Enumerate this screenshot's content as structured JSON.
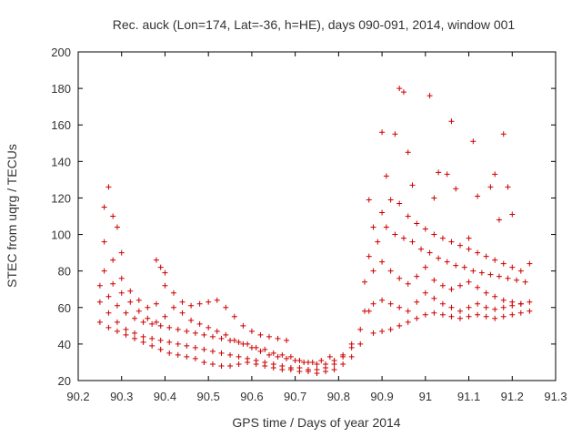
{
  "chart_data": {
    "type": "scatter",
    "title": "Rec. auck (Lon=174, Lat=-36, h=HE), days 090-091, 2014, window 001",
    "xlabel": "GPS time / Days of year 2014",
    "ylabel": "STEC from uqrg / TECUs",
    "xlim": [
      90.2,
      91.3
    ],
    "ylim": [
      20,
      200
    ],
    "xticks": [
      90.2,
      90.3,
      90.4,
      90.5,
      90.6,
      90.7,
      90.8,
      90.9,
      91,
      91.1,
      91.2,
      91.3
    ],
    "xtick_labels": [
      "90.2",
      "90.3",
      "90.4",
      "90.5",
      "90.6",
      "90.7",
      "90.8",
      "90.9",
      "91",
      "91.1",
      "91.2",
      "91.3"
    ],
    "yticks": [
      20,
      40,
      60,
      80,
      100,
      120,
      140,
      160,
      180,
      200
    ],
    "ytick_labels": [
      "20",
      "40",
      "60",
      "80",
      "100",
      "120",
      "140",
      "160",
      "180",
      "200"
    ],
    "grid": false,
    "marker": "+",
    "color": "#cc0000",
    "series": [
      {
        "name": "sat-1",
        "x": [
          90.25,
          90.27,
          90.29,
          90.31,
          90.33,
          90.35,
          90.37,
          90.39,
          90.41,
          90.43,
          90.45,
          90.47,
          90.49,
          90.51,
          90.53,
          90.55,
          90.57,
          90.59,
          90.61,
          90.63,
          90.65,
          90.67,
          90.69,
          90.71,
          90.73,
          90.75,
          90.77,
          90.79,
          90.81,
          90.83,
          90.85
        ],
        "y": [
          52,
          49,
          47,
          45,
          43,
          41,
          39,
          37,
          35,
          34,
          33,
          32,
          30,
          29,
          28,
          28,
          29,
          30,
          29,
          28,
          27,
          26,
          26,
          25,
          25,
          24,
          25,
          26,
          29,
          33,
          40
        ]
      },
      {
        "name": "sat-2",
        "x": [
          90.25,
          90.27,
          90.29,
          90.31,
          90.33,
          90.35,
          90.37,
          90.39,
          90.41,
          90.43,
          90.45,
          90.47,
          90.49,
          90.51,
          90.53,
          90.55,
          90.57,
          90.59,
          90.61,
          90.63,
          90.65,
          90.67,
          90.69,
          90.71,
          90.73,
          90.75,
          90.77,
          90.79,
          90.81,
          90.83
        ],
        "y": [
          63,
          57,
          52,
          48,
          46,
          44,
          43,
          42,
          41,
          40,
          39,
          38,
          37,
          36,
          35,
          34,
          33,
          32,
          31,
          30,
          29,
          28,
          27,
          27,
          26,
          26,
          27,
          29,
          33,
          38
        ]
      },
      {
        "name": "sat-3",
        "x": [
          90.25,
          90.27,
          90.29,
          90.31,
          90.33,
          90.35,
          90.37,
          90.39,
          90.41,
          90.43,
          90.45,
          90.47,
          90.49,
          90.51,
          90.53,
          90.55,
          90.57,
          90.59,
          90.61,
          90.63,
          90.65,
          90.67,
          90.69,
          90.71,
          90.73,
          90.75,
          90.77,
          90.79,
          90.81,
          90.83,
          90.85,
          90.87
        ],
        "y": [
          72,
          66,
          61,
          57,
          54,
          52,
          51,
          50,
          49,
          48,
          47,
          46,
          45,
          44,
          43,
          42,
          41,
          40,
          38,
          37,
          35,
          34,
          33,
          31,
          30,
          29,
          29,
          31,
          34,
          40,
          48,
          58
        ]
      },
      {
        "name": "sat-4",
        "x": [
          90.26,
          90.28,
          90.3,
          90.32,
          90.34,
          90.36,
          90.38,
          90.4,
          90.42,
          90.44,
          90.46,
          90.48,
          90.5,
          90.52,
          90.54,
          90.56,
          90.58,
          90.6,
          90.62,
          90.64,
          90.66,
          90.68
        ],
        "y": [
          96,
          86,
          76,
          69,
          64,
          60,
          62,
          72,
          68,
          63,
          61,
          62,
          63,
          64,
          60,
          55,
          50,
          47,
          45,
          44,
          43,
          42
        ]
      },
      {
        "name": "sat-5",
        "x": [
          90.26,
          90.28,
          90.3,
          90.32,
          90.34,
          90.36,
          90.38,
          90.4,
          90.42,
          90.44,
          90.46,
          90.48,
          90.5,
          90.52,
          90.54,
          90.56,
          90.58,
          90.6,
          90.62,
          90.64,
          90.66,
          90.68,
          90.7,
          90.72,
          90.74,
          90.76,
          90.78
        ],
        "y": [
          80,
          73,
          68,
          63,
          58,
          54,
          52,
          55,
          60,
          57,
          53,
          51,
          49,
          47,
          45,
          42,
          40,
          38,
          36,
          34,
          33,
          32,
          31,
          30,
          30,
          31,
          33
        ]
      },
      {
        "name": "sat-6",
        "x": [
          90.88,
          90.9,
          90.92,
          90.94,
          90.96,
          90.98,
          91.0,
          91.02,
          91.04,
          91.06,
          91.08,
          91.1,
          91.12,
          91.14,
          91.16,
          91.18,
          91.2,
          91.22,
          91.24
        ],
        "y": [
          46,
          47,
          48,
          50,
          52,
          54,
          56,
          57,
          56,
          55,
          54,
          55,
          56,
          55,
          54,
          55,
          56,
          57,
          58
        ]
      },
      {
        "name": "sat-7",
        "x": [
          90.86,
          90.88,
          90.9,
          90.92,
          90.94,
          90.96,
          90.98,
          91.0,
          91.02,
          91.04,
          91.06,
          91.08,
          91.1,
          91.12,
          91.14,
          91.16,
          91.18,
          91.2,
          91.22,
          91.24
        ],
        "y": [
          58,
          62,
          64,
          62,
          60,
          58,
          63,
          68,
          65,
          62,
          60,
          58,
          60,
          62,
          60,
          59,
          60,
          61,
          62,
          63
        ]
      },
      {
        "name": "sat-8",
        "x": [
          90.86,
          90.88,
          90.9,
          90.92,
          90.94,
          90.96,
          90.98,
          91.0,
          91.02,
          91.04,
          91.06,
          91.08,
          91.1,
          91.12,
          91.14,
          91.16,
          91.18,
          91.2,
          91.22
        ],
        "y": [
          74,
          80,
          85,
          80,
          76,
          73,
          77,
          82,
          75,
          72,
          70,
          72,
          74,
          71,
          68,
          66,
          64,
          63,
          62
        ]
      },
      {
        "name": "sat-9",
        "x": [
          90.87,
          90.89,
          90.91,
          90.93,
          90.95,
          90.97,
          90.99,
          91.01,
          91.03,
          91.05,
          91.07,
          91.09,
          91.11,
          91.13,
          91.15,
          91.17,
          91.19,
          91.21,
          91.23
        ],
        "y": [
          88,
          96,
          104,
          100,
          98,
          96,
          92,
          90,
          87,
          85,
          83,
          82,
          80,
          79,
          78,
          77,
          76,
          75,
          74
        ]
      },
      {
        "name": "sat-10",
        "x": [
          90.88,
          90.9,
          90.92,
          90.94,
          90.96,
          90.98,
          91.0,
          91.02,
          91.04,
          91.06,
          91.08,
          91.1,
          91.12,
          91.14,
          91.16,
          91.18,
          91.2,
          91.22,
          91.24
        ],
        "y": [
          104,
          112,
          119,
          117,
          110,
          106,
          103,
          100,
          98,
          96,
          94,
          92,
          90,
          88,
          86,
          84,
          82,
          80,
          84
        ]
      },
      {
        "name": "sat-11",
        "x": [
          90.26,
          90.27,
          90.28,
          90.29,
          90.3,
          90.38,
          90.39,
          90.4,
          90.87,
          90.9,
          90.91,
          90.93,
          90.94,
          90.95,
          90.96,
          90.97,
          91.01,
          91.02,
          91.03,
          91.05,
          91.06,
          91.07,
          91.1,
          91.11,
          91.12,
          91.15,
          91.16,
          91.17,
          91.18,
          91.19,
          91.2
        ],
        "y": [
          115,
          126,
          110,
          104,
          90,
          86,
          82,
          79,
          119,
          156,
          132,
          155,
          180,
          178,
          145,
          127,
          176,
          120,
          134,
          133,
          162,
          125,
          98,
          151,
          121,
          126,
          133,
          108,
          155,
          126,
          111
        ]
      }
    ]
  }
}
